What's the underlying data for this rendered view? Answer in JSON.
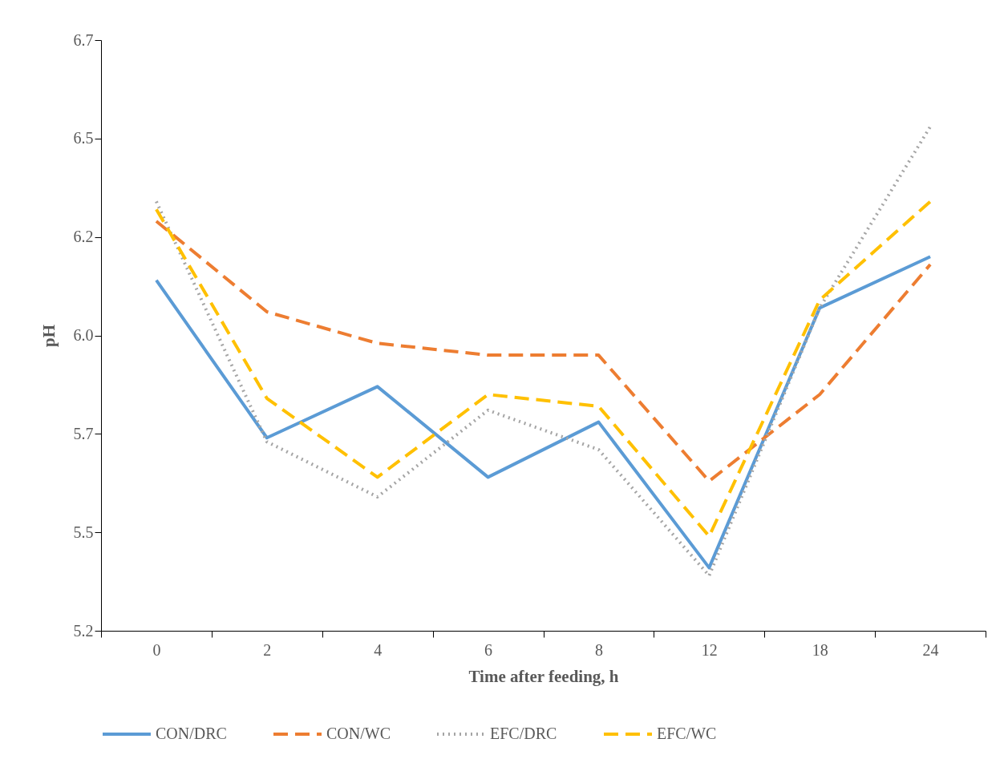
{
  "chart_data": {
    "type": "line",
    "xlabel": "Time after feeding, h",
    "ylabel": "pH",
    "categories": [
      "0",
      "2",
      "4",
      "6",
      "8",
      "12",
      "18",
      "24"
    ],
    "ylim": [
      5.25,
      6.75
    ],
    "yticks": [
      {
        "value": 5.25,
        "label": "5.2"
      },
      {
        "value": 5.5,
        "label": "5.5"
      },
      {
        "value": 5.75,
        "label": "5.7"
      },
      {
        "value": 6.0,
        "label": "6.0"
      },
      {
        "value": 6.25,
        "label": "6.2"
      },
      {
        "value": 6.5,
        "label": "6.5"
      },
      {
        "value": 6.75,
        "label": "6.7"
      }
    ],
    "grid": false,
    "legend": "bottom",
    "marker": "none",
    "series": [
      {
        "name": "CON/DRC",
        "color": "#5b9bd5",
        "line_style": "solid",
        "values": [
          6.14,
          5.74,
          5.87,
          5.64,
          5.78,
          5.41,
          6.07,
          6.2
        ]
      },
      {
        "name": "CON/WC",
        "color": "#ed7d31",
        "line_style": "dashed",
        "values": [
          6.29,
          6.06,
          5.98,
          5.95,
          5.95,
          5.63,
          5.85,
          6.18
        ]
      },
      {
        "name": "EFC/DRC",
        "color": "#a5a5a5",
        "line_style": "dotted",
        "values": [
          6.34,
          5.73,
          5.59,
          5.81,
          5.71,
          5.39,
          6.07,
          6.53
        ]
      },
      {
        "name": "EFC/WC",
        "color": "#ffc000",
        "line_style": "dashed",
        "values": [
          6.32,
          5.84,
          5.64,
          5.85,
          5.82,
          5.49,
          6.09,
          6.34
        ]
      }
    ]
  }
}
